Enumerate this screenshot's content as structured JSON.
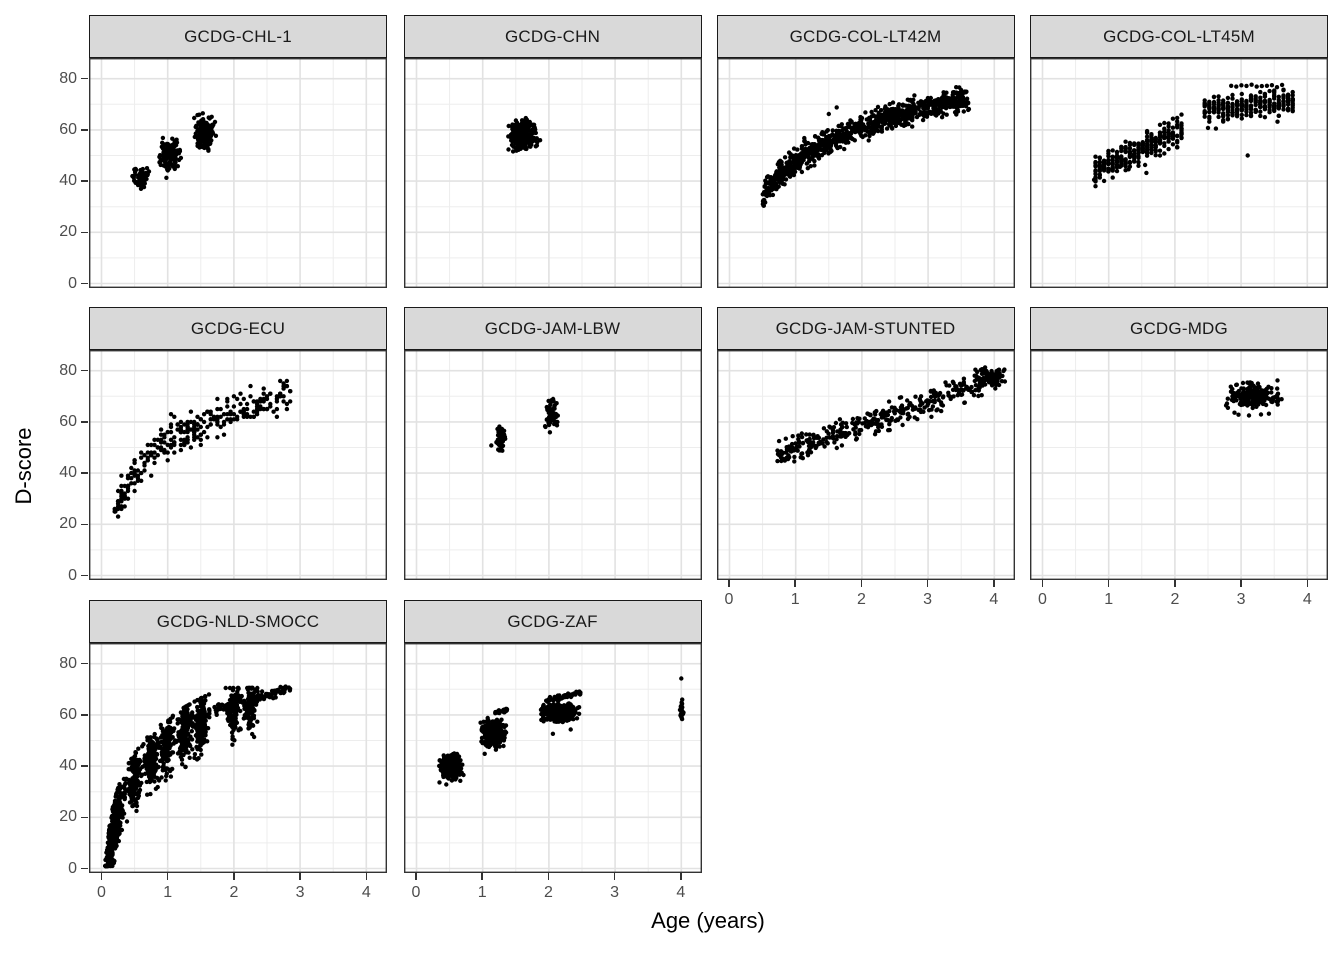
{
  "chart_data": {
    "type": "scatter",
    "title": "",
    "xlabel": "Age (years)",
    "ylabel": "D-score",
    "x_ticks": [
      0,
      1,
      2,
      3,
      4
    ],
    "x_minor": [
      0.5,
      1.5,
      2.5,
      3.5
    ],
    "y_ticks": [
      0,
      20,
      40,
      60,
      80
    ],
    "y_minor": [
      10,
      30,
      50,
      70
    ],
    "x_range": [
      -0.19,
      4.31
    ],
    "y_range": [
      -1.9,
      88
    ],
    "grid": true,
    "legend": "none",
    "point_color": "#000000",
    "strip_fill": "#D9D9D9",
    "panel_border_color": "#333333",
    "grid_major_color": "#E2E2E2",
    "grid_minor_color": "#EDEDED",
    "facet_layout": {
      "ncol": 4,
      "nrow": 3
    },
    "panels": [
      {
        "label": "GCDG-CHL-1",
        "row": 0,
        "col": 0,
        "clusters": [
          {
            "kind": "blob",
            "n": 70,
            "cx": 0.58,
            "cy": 41.0,
            "sx": 0.055,
            "sy": 2.0,
            "clx": [
              0.45,
              0.73
            ],
            "cly": [
              36.5,
              46.0
            ]
          },
          {
            "kind": "blob",
            "n": 135,
            "cx": 1.03,
            "cy": 50.5,
            "sx": 0.075,
            "sy": 2.7,
            "clx": [
              0.85,
              1.23
            ],
            "cly": [
              43.5,
              57.0
            ]
          },
          {
            "kind": "blob",
            "n": 135,
            "cx": 1.56,
            "cy": 58.5,
            "sx": 0.075,
            "sy": 2.9,
            "clx": [
              1.38,
              1.77
            ],
            "cly": [
              51.0,
              66.5
            ]
          },
          {
            "kind": "pts",
            "p": [
              [
                0.98,
                41.3
              ],
              [
                1.45,
                65.8
              ],
              [
                1.53,
                66.5
              ]
            ]
          }
        ]
      },
      {
        "label": "GCDG-CHN",
        "row": 0,
        "col": 1,
        "clusters": [
          {
            "kind": "blob",
            "n": 340,
            "cx": 1.6,
            "cy": 58.0,
            "sx": 0.1,
            "sy": 2.7,
            "clx": [
              1.38,
              1.88
            ],
            "cly": [
              51.5,
              65.5
            ]
          }
        ]
      },
      {
        "label": "GCDG-COL-LT42M",
        "row": 0,
        "col": 2,
        "clusters": [
          {
            "kind": "log",
            "n": 950,
            "x0": 0.5,
            "x1": 3.62,
            "a": 47.2,
            "b": 19.8,
            "sd": 2.3,
            "clip": 6,
            "xpow": 1.0
          },
          {
            "kind": "pts",
            "p": [
              [
                1.62,
                68.8
              ],
              [
                1.5,
                66.2
              ],
              [
                1.13,
                56.8
              ],
              [
                0.62,
                40.5
              ],
              [
                0.55,
                39.0
              ]
            ]
          }
        ]
      },
      {
        "label": "GCDG-COL-LT45M",
        "row": 0,
        "col": 3,
        "clusters": [
          {
            "kind": "cols",
            "x0": 0.8,
            "x1": 2.1,
            "step": 0.065,
            "nper": 14,
            "c0": 44.0,
            "slope": 12.3,
            "sy": 2.7,
            "half": 6.0
          },
          {
            "kind": "cols",
            "x0": 2.45,
            "x1": 3.78,
            "step": 0.07,
            "nper": 13,
            "c0": 67.5,
            "slope": 2.7,
            "sy": 2.4,
            "half": 5.0
          },
          {
            "kind": "cols",
            "x0": 2.85,
            "x1": 3.62,
            "step": 0.077,
            "nper": 1,
            "c0": 77.2,
            "slope": 0,
            "sy": 0.25,
            "half": 0.6
          },
          {
            "kind": "pts",
            "p": [
              [
                0.78,
                40.5
              ],
              [
                1.17,
                45.6
              ],
              [
                1.3,
                44.6
              ],
              [
                1.55,
                46.3
              ],
              [
                1.57,
                43.2
              ],
              [
                3.1,
                50.0
              ],
              [
                2.62,
                60.5
              ],
              [
                3.55,
                63.2
              ],
              [
                2.5,
                60.8
              ]
            ]
          }
        ]
      },
      {
        "label": "GCDG-ECU",
        "row": 1,
        "col": 0,
        "clusters": [
          {
            "kind": "log",
            "n": 280,
            "x0": 0.2,
            "x1": 2.87,
            "a": 51.7,
            "b": 17.8,
            "sd": 3.6,
            "clip": 7.5,
            "xpow": 1.1,
            "ymax": 75.5,
            "round": {
              "x": 0.05,
              "y": 1
            }
          },
          {
            "kind": "pts",
            "p": [
              [
                0.21,
                25.0
              ],
              [
                0.25,
                29.0
              ],
              [
                0.3,
                32.0
              ],
              [
                1.05,
                63.0
              ],
              [
                1.1,
                62.0
              ]
            ]
          }
        ]
      },
      {
        "label": "GCDG-JAM-LBW",
        "row": 1,
        "col": 1,
        "clusters": [
          {
            "kind": "blob",
            "n": 55,
            "cx": 1.27,
            "cy": 53.5,
            "sx": 0.035,
            "sy": 2.3,
            "clx": [
              1.17,
              1.36
            ],
            "cly": [
              48.5,
              58.5
            ]
          },
          {
            "kind": "blob",
            "n": 55,
            "cx": 2.04,
            "cy": 62.5,
            "sx": 0.045,
            "sy": 3.1,
            "clx": [
              1.93,
              2.17
            ],
            "cly": [
              55.5,
              69.5
            ]
          },
          {
            "kind": "pts",
            "p": [
              [
                1.13,
                50.8
              ]
            ]
          }
        ]
      },
      {
        "label": "GCDG-JAM-STUNTED",
        "row": 1,
        "col": 2,
        "clusters": [
          {
            "kind": "line",
            "n": 360,
            "x0": 0.72,
            "x1": 4.0,
            "y0": 46.7,
            "y1": 77.2,
            "sd": 2.4
          },
          {
            "kind": "blob",
            "n": 70,
            "cx": 3.95,
            "cy": 77.5,
            "sx": 0.13,
            "sy": 2.0,
            "clx": [
              3.65,
              4.18
            ],
            "cly": [
              73.0,
              81.5
            ]
          },
          {
            "kind": "pts",
            "p": [
              [
                0.75,
                47.0
              ],
              [
                2.42,
                56.8
              ],
              [
                3.05,
                62.0
              ],
              [
                2.2,
                55.2
              ],
              [
                0.78,
                48.5
              ]
            ]
          }
        ]
      },
      {
        "label": "GCDG-MDG",
        "row": 1,
        "col": 3,
        "clusters": [
          {
            "kind": "blob",
            "n": 240,
            "cx": 3.18,
            "cy": 70.0,
            "sx": 0.19,
            "sy": 2.1,
            "clx": [
              2.76,
              3.62
            ],
            "cly": [
              64.8,
              75.5
            ]
          },
          {
            "kind": "pts",
            "p": [
              [
                2.96,
                62.8
              ],
              [
                3.12,
                62.5
              ],
              [
                3.3,
                62.9
              ],
              [
                2.9,
                63.6
              ],
              [
                3.42,
                63.2
              ],
              [
                3.55,
                76.2
              ],
              [
                2.8,
                65.5
              ]
            ]
          }
        ]
      },
      {
        "label": "GCDG-NLD-SMOCC",
        "row": 2,
        "col": 0,
        "clusters": [
          {
            "kind": "visits",
            "n": 1450,
            "ages": [
              0.09,
              0.17,
              0.26,
              0.5,
              0.76,
              1.0,
              1.26,
              1.5,
              2.0,
              2.26
            ],
            "w": [
              10,
              10,
              10,
              11,
              11,
              11,
              11,
              10,
              9,
              7
            ],
            "jit": 0.05,
            "a": 48,
            "b": 19.6,
            "sd": 5.4,
            "lo": 13,
            "hi": 10.5,
            "ymin": 1,
            "ymax": 70.5
          },
          {
            "kind": "line",
            "n": 90,
            "x0": 1.35,
            "x1": 2.8,
            "y0": 59.0,
            "y1": 70.2,
            "sd": 0.9
          },
          {
            "kind": "line",
            "n": 25,
            "x0": 2.3,
            "x1": 2.85,
            "y0": 66.5,
            "y1": 70.3,
            "sd": 1.2
          },
          {
            "kind": "pts",
            "p": [
              [
                0.1,
                2.5
              ],
              [
                0.12,
                1.5
              ],
              [
                0.14,
                4.0
              ],
              [
                2.73,
                70.5
              ],
              [
                2.78,
                70.2
              ]
            ]
          }
        ]
      },
      {
        "label": "GCDG-ZAF",
        "row": 2,
        "col": 1,
        "clusters": [
          {
            "kind": "blob",
            "n": 300,
            "cx": 0.52,
            "cy": 39.5,
            "sx": 0.085,
            "sy": 2.5,
            "clx": [
              0.34,
              0.72
            ],
            "cly": [
              33.5,
              45.8
            ]
          },
          {
            "kind": "blob",
            "n": 280,
            "cx": 1.16,
            "cy": 53.0,
            "sx": 0.085,
            "sy": 2.6,
            "clx": [
              0.96,
              1.37
            ],
            "cly": [
              47.0,
              59.3
            ]
          },
          {
            "kind": "line",
            "n": 26,
            "x0": 1.18,
            "x1": 1.37,
            "y0": 60.8,
            "y1": 61.9,
            "sd": 0.4
          },
          {
            "kind": "blob",
            "n": 310,
            "cx": 2.16,
            "cy": 61.0,
            "sx": 0.13,
            "sy": 1.9,
            "clx": [
              1.88,
              2.47
            ],
            "cly": [
              57.2,
              65.0
            ]
          },
          {
            "kind": "line",
            "n": 60,
            "x0": 1.95,
            "x1": 2.48,
            "y0": 65.4,
            "y1": 68.7,
            "sd": 0.55
          },
          {
            "kind": "blob",
            "n": 24,
            "cx": 4.01,
            "cy": 62.0,
            "sx": 0.012,
            "sy": 2.3,
            "clx": [
              3.98,
              4.05
            ],
            "cly": [
              58.3,
              66.3
            ]
          },
          {
            "kind": "pts",
            "p": [
              [
                4.0,
                74.2
              ],
              [
                2.06,
                52.6
              ],
              [
                2.33,
                54.3
              ],
              [
                1.03,
                44.8
              ],
              [
                1.2,
                46.4
              ],
              [
                0.98,
                49.6
              ],
              [
                0.45,
                32.8
              ]
            ]
          }
        ]
      }
    ]
  }
}
